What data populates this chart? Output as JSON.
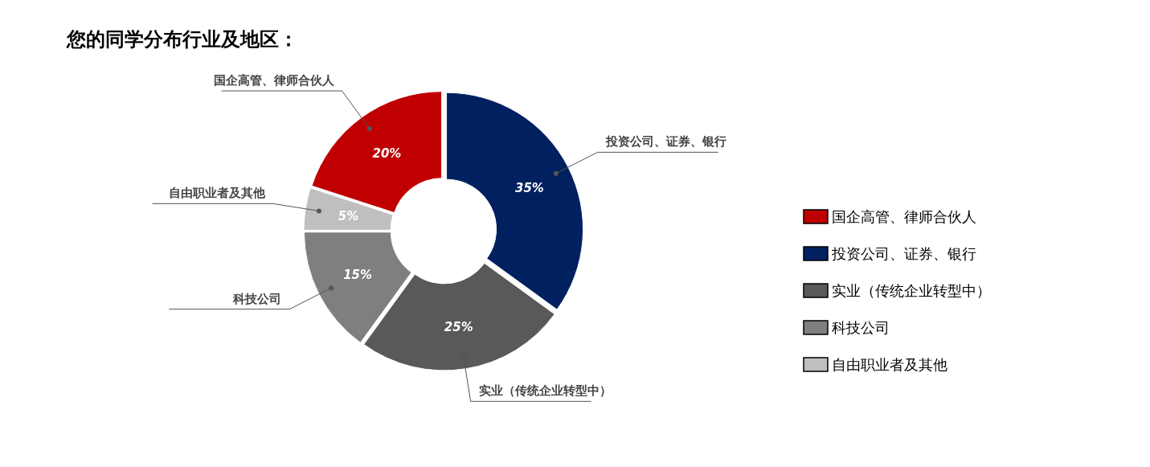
{
  "chart_data": {
    "type": "donut",
    "title": "您的同学分布行业及地区：",
    "categories": [
      "国企高管、律师合伙人",
      "投资公司、证券、银行",
      "实业（传统企业转型中）",
      "科技公司",
      "自由职业者及其他"
    ],
    "values": [
      20,
      35,
      25,
      15,
      5
    ],
    "value_labels": [
      "20%",
      "35%",
      "25%",
      "15%",
      "5%"
    ],
    "colors": [
      "#c00000",
      "#002060",
      "#595959",
      "#7f7f7f",
      "#bfbfbf"
    ],
    "legend": "right"
  }
}
